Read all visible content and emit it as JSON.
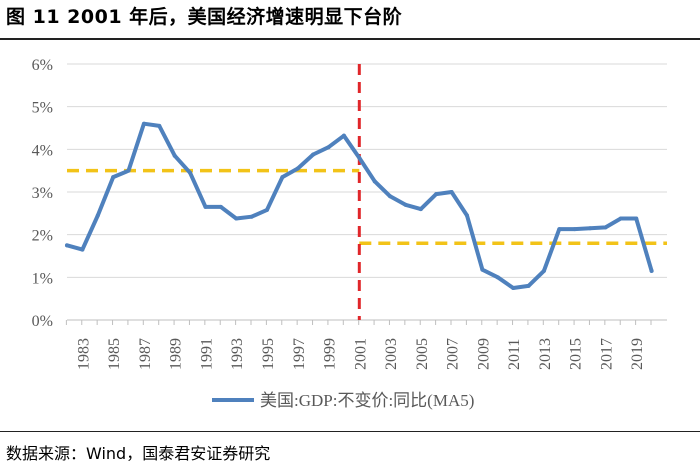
{
  "figure": {
    "title": "图 11 2001 年后，美国经济增速明显下台阶",
    "source": "数据来源：Wind，国泰君安证券研究"
  },
  "chart_data": {
    "type": "line",
    "title": "图 11 2001 年后，美国经济增速明显下台阶",
    "xlabel": "",
    "ylabel": "",
    "ylim": [
      0,
      6
    ],
    "y_ticks": [
      "0%",
      "1%",
      "2%",
      "3%",
      "4%",
      "5%",
      "6%"
    ],
    "x_tick_labels": [
      "1983",
      "1985",
      "1987",
      "1989",
      "1991",
      "1993",
      "1995",
      "1997",
      "1999",
      "2001",
      "2003",
      "2005",
      "2007",
      "2009",
      "2011",
      "2013",
      "2015",
      "2017",
      "2019"
    ],
    "xlim": [
      1982,
      2021
    ],
    "series": [
      {
        "name": "美国:GDP:不变价:同比(MA5)",
        "color": "#4f81bd",
        "x": [
          1982,
          1983,
          1984,
          1985,
          1986,
          1987,
          1988,
          1989,
          1990,
          1991,
          1992,
          1993,
          1994,
          1995,
          1996,
          1997,
          1998,
          1999,
          2000,
          2001,
          2002,
          2003,
          2004,
          2005,
          2006,
          2007,
          2008,
          2009,
          2010,
          2011,
          2012,
          2013,
          2014,
          2015,
          2016,
          2017,
          2018,
          2019,
          2020
        ],
        "values": [
          1.75,
          1.65,
          2.45,
          3.35,
          3.5,
          4.6,
          4.55,
          3.85,
          3.45,
          2.65,
          2.65,
          2.38,
          2.42,
          2.58,
          3.35,
          3.55,
          3.88,
          4.05,
          4.32,
          3.8,
          3.25,
          2.9,
          2.7,
          2.6,
          2.95,
          3.0,
          2.45,
          1.18,
          1.0,
          0.75,
          0.8,
          1.15,
          2.13,
          2.13,
          2.15,
          2.17,
          2.38,
          2.38,
          1.15
        ]
      }
    ],
    "reference_lines": [
      {
        "type": "horizontal",
        "y": 3.5,
        "x_range": [
          1982,
          2001
        ],
        "color": "#f2c318",
        "style": "dashed"
      },
      {
        "type": "horizontal",
        "y": 1.8,
        "x_range": [
          2001,
          2021
        ],
        "color": "#f2c318",
        "style": "dashed"
      },
      {
        "type": "vertical",
        "x": 2001,
        "color": "#e0262a",
        "style": "dashed"
      }
    ],
    "legend": {
      "label": "美国:GDP:不变价:同比(MA5)",
      "position": "bottom-center"
    }
  }
}
